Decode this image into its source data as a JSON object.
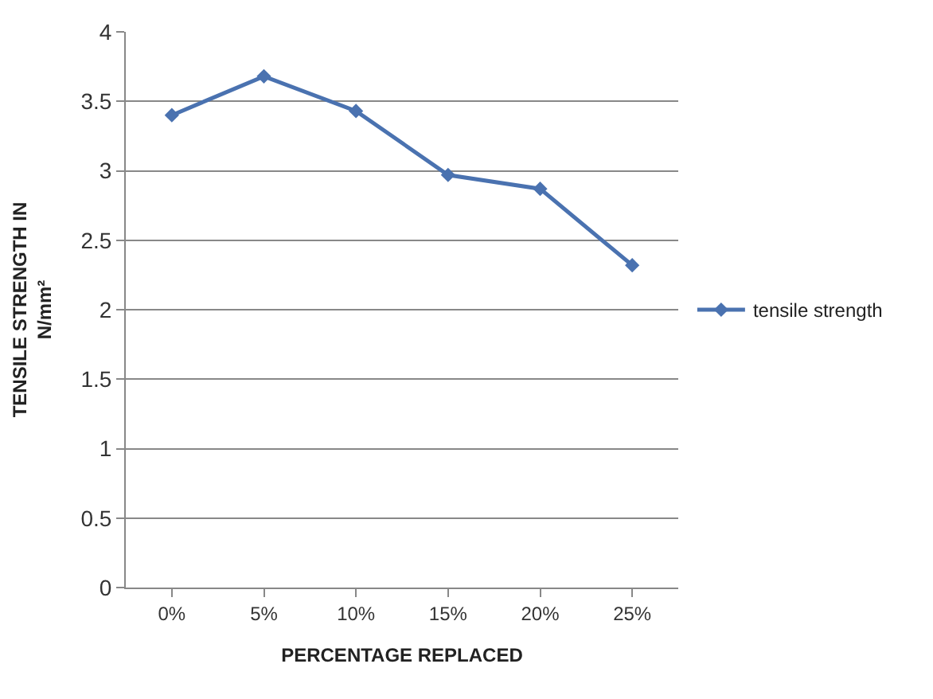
{
  "chart_data": {
    "type": "line",
    "xlabel": "PERCENTAGE REPLACED",
    "ylabel": "TENSILE STRENGTH IN N/mm²",
    "categories": [
      "0%",
      "5%",
      "10%",
      "15%",
      "20%",
      "25%"
    ],
    "series": [
      {
        "name": "tensile strength",
        "color": "#4a72b0",
        "values": [
          3.4,
          3.68,
          3.43,
          2.97,
          2.87,
          2.32
        ]
      }
    ],
    "ylim": [
      0,
      4
    ],
    "yticks": [
      0,
      0.5,
      1,
      1.5,
      2,
      2.5,
      3,
      3.5,
      4
    ],
    "grid": "y",
    "legend": "right",
    "marker": "diamond",
    "line_style": "solid"
  }
}
